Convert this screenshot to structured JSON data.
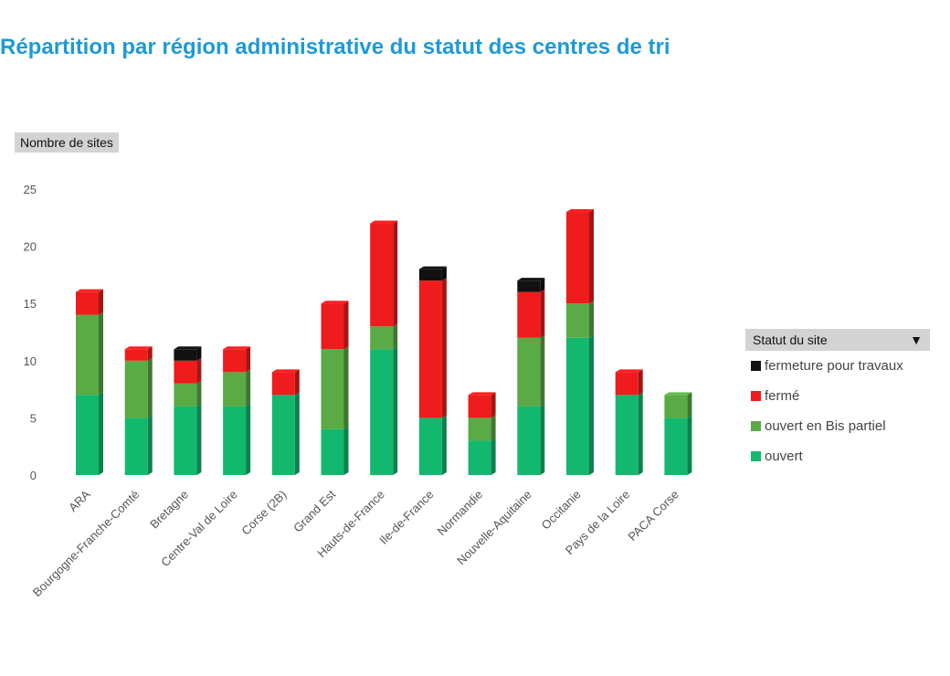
{
  "page": {
    "title": "Répartition par région administrative du statut des centres de tri",
    "yaxis_button": "Nombre de sites",
    "legend_button": "Statut du site",
    "legend_caret": "▼"
  },
  "chart_data": {
    "type": "bar",
    "stacked": true,
    "title": "Répartition par région administrative du statut des centres de tri",
    "ylabel": "Nombre de sites",
    "ylim": [
      0,
      25
    ],
    "yticks": [
      0,
      5,
      10,
      15,
      20,
      25
    ],
    "legend_title": "Statut du site",
    "legend_position": "right",
    "categories": [
      "ARA",
      "Bourgogne-Franche-Comté",
      "Bretagne",
      "Centre-Val de Loire",
      "Corse (2B)",
      "Grand Est",
      "Hauts-de-France",
      "Ile-de-France",
      "Normandie",
      "Nouvelle-Aquitaine",
      "Occitanie",
      "Pays de la Loire",
      "PACA Corse"
    ],
    "series": [
      {
        "name": "ouvert",
        "color": "#12b86e",
        "values": [
          7,
          5,
          6,
          6,
          7,
          4,
          11,
          5,
          3,
          6,
          12,
          7,
          5
        ]
      },
      {
        "name": "ouvert en Bis partiel",
        "color": "#5aaa46",
        "values": [
          7,
          5,
          2,
          3,
          0,
          7,
          2,
          0,
          2,
          6,
          3,
          0,
          2
        ]
      },
      {
        "name": "fermé",
        "color": "#ee1c1c",
        "values": [
          2,
          1,
          2,
          2,
          2,
          4,
          9,
          12,
          2,
          4,
          8,
          2,
          0
        ]
      },
      {
        "name": "fermeture pour travaux",
        "color": "#111111",
        "values": [
          0,
          0,
          1,
          0,
          0,
          0,
          0,
          1,
          0,
          1,
          0,
          0,
          0
        ]
      }
    ]
  }
}
